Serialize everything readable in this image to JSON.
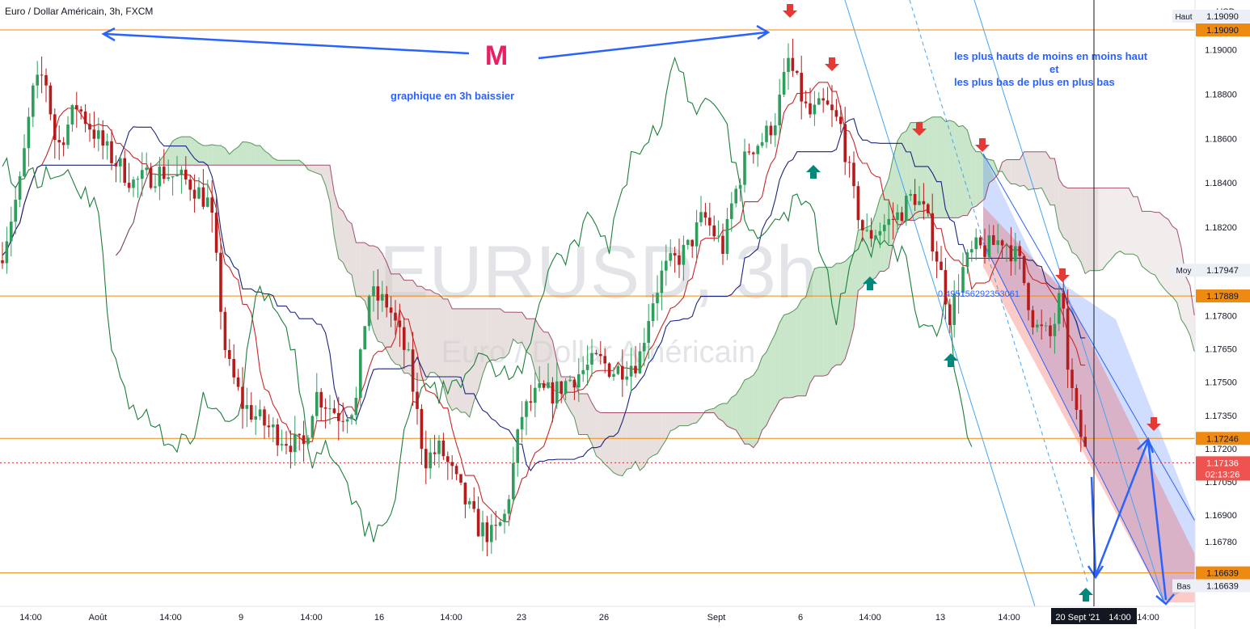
{
  "header": {
    "symbol_info": "Euro / Dollar Américain, 3h, FXCM"
  },
  "currency": "USD",
  "watermark": {
    "symbol": "EURUSD, 3h",
    "name": "Euro / Dollar Américain"
  },
  "chart_data": {
    "type": "candlestick",
    "symbol": "EURUSD",
    "timeframe": "3h",
    "x_ticks": [
      "14:00",
      "Août",
      "14:00",
      "9",
      "14:00",
      "16",
      "14:00",
      "23",
      "26",
      "Sept",
      "6",
      "14:00",
      "13",
      "14:00",
      "20 Sept '21",
      "14:00",
      "14:00"
    ],
    "y_ticks": [
      "1.19090",
      "1.19000",
      "1.18800",
      "1.18600",
      "1.18400",
      "1.18200",
      "1.18000",
      "1.17947",
      "1.17889",
      "1.17800",
      "1.17650",
      "1.17500",
      "1.17350",
      "1.17246",
      "1.17200",
      "1.17136",
      "1.17050",
      "1.16900",
      "1.16780",
      "1.16639",
      "1.16639"
    ],
    "ylim": [
      1.166,
      1.191
    ],
    "price_tags": [
      {
        "label": "Haut",
        "value": "1.19090"
      },
      {
        "label": "",
        "value": "1.19090"
      },
      {
        "label": "Moy",
        "value": "1.17947"
      },
      {
        "label": "",
        "value": "1.17889"
      },
      {
        "label": "",
        "value": "1.17246"
      },
      {
        "label": "",
        "value": "1.17136"
      },
      {
        "label": "",
        "value": "02:13:26"
      },
      {
        "label": "",
        "value": "1.16639"
      },
      {
        "label": "Bas",
        "value": "1.16639"
      }
    ],
    "horizontal_levels": [
      1.1909,
      1.17889,
      1.17246,
      1.16639
    ],
    "last_price": 1.17136,
    "countdown": "02:13:26",
    "range": {
      "high": 1.1909,
      "mid": 1.17947,
      "low": 1.16639
    },
    "annotations": {
      "pattern": "M",
      "caption": "graphique en 3h baissier",
      "note_line1": "les plus hauts de moins en moins haut",
      "note_line2": "et",
      "note_line3": "les plus bas de plus en plus bas",
      "channel_value": "0.495156292353061"
    },
    "crosshair_date": "20 Sept '21",
    "indicators": [
      "Ichimoku: Tenkan-sen",
      "Kijun-sen",
      "Chikou span",
      "Senkou span A",
      "Senkou span B"
    ],
    "colors": {
      "up": "#2e9e5b",
      "down": "#b71c1c",
      "tenkan": "#c62828",
      "kijun": "#1a237e",
      "chikou": "#1b7f3a",
      "cloud_green": "#a5d6a7",
      "cloud_red": "#d7ccc8",
      "level": "#ef8a10",
      "arrow_red": "#e53935",
      "arrow_green": "#00897b",
      "annotation_blue": "#2962ff",
      "m_color": "#e91e63"
    }
  }
}
